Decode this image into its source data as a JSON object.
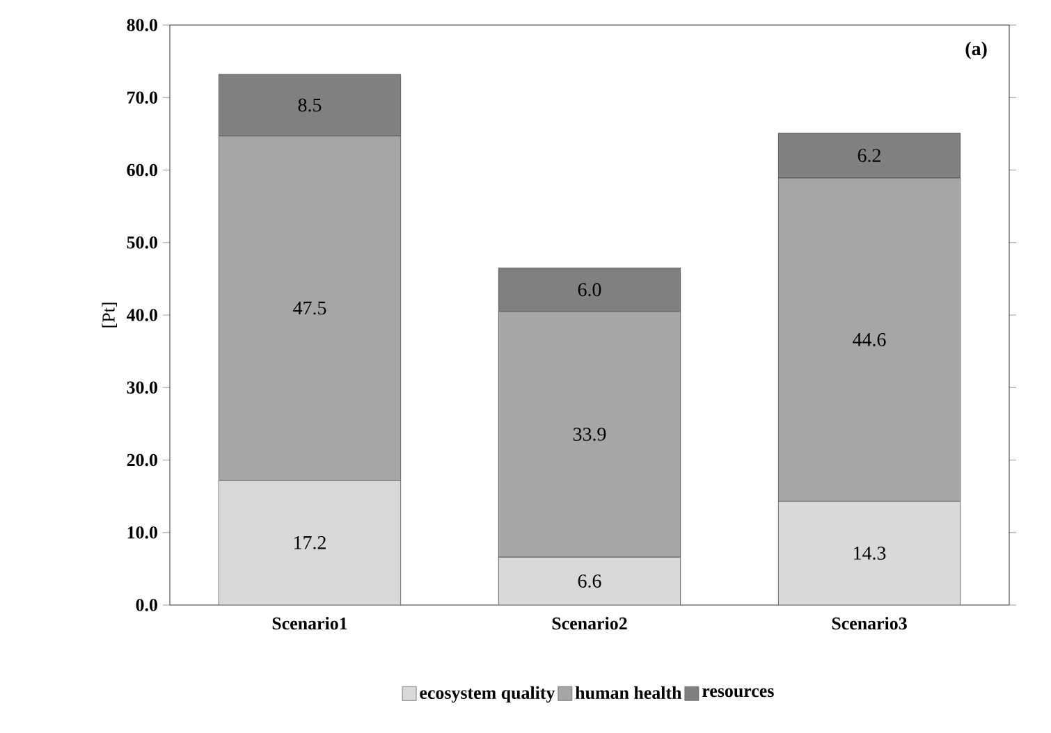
{
  "chart_data": {
    "type": "bar",
    "stacked": true,
    "ylabel": "[Pt]",
    "annotations": [
      "(a)"
    ],
    "categories": [
      "Scenario1",
      "Scenario2",
      "Scenario3"
    ],
    "series": [
      {
        "name": "ecosystem quality",
        "color": "#d9d9d9",
        "values": [
          17.2,
          6.6,
          14.3
        ],
        "value_labels": [
          "17.2",
          "6.6",
          "14.3"
        ]
      },
      {
        "name": "human health",
        "color": "#a6a6a6",
        "values": [
          47.5,
          33.9,
          44.6
        ],
        "value_labels": [
          "47.5",
          "33.9",
          "44.6"
        ]
      },
      {
        "name": "resources",
        "color": "#808080",
        "values": [
          8.5,
          6.0,
          6.2
        ],
        "value_labels": [
          "8.5",
          "6.0",
          "6.2"
        ]
      }
    ],
    "ylim": [
      0,
      80
    ],
    "yticks": [
      {
        "value": 0,
        "label": "0.0"
      },
      {
        "value": 10,
        "label": "10.0"
      },
      {
        "value": 20,
        "label": "20.0"
      },
      {
        "value": 30,
        "label": "30.0"
      },
      {
        "value": 40,
        "label": "40.0"
      },
      {
        "value": 50,
        "label": "50.0"
      },
      {
        "value": 60,
        "label": "60.0"
      },
      {
        "value": 70,
        "label": "70.0"
      },
      {
        "value": 80,
        "label": "80.0"
      }
    ],
    "legend": "bottom",
    "grid": false
  }
}
